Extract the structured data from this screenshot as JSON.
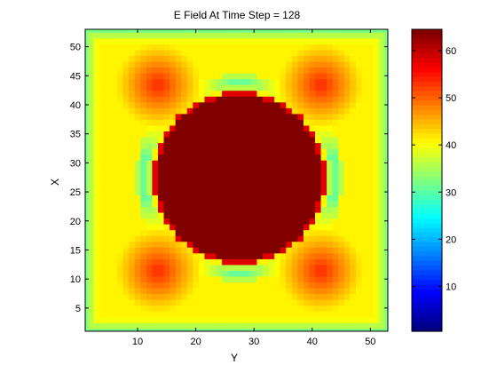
{
  "chart_data": {
    "type": "heatmap",
    "title": "E Field At Time Step = 128",
    "xlabel": "Y",
    "ylabel": "X",
    "xlim": [
      1,
      53
    ],
    "ylim": [
      1,
      53
    ],
    "x_ticks": [
      10,
      20,
      30,
      40,
      50
    ],
    "y_ticks": [
      5,
      10,
      15,
      20,
      25,
      30,
      35,
      40,
      45,
      50
    ],
    "colorbar": {
      "range": [
        1,
        64
      ],
      "ticks": [
        10,
        20,
        30,
        40,
        50,
        60
      ],
      "colormap": "jet"
    },
    "field_description": {
      "central_disk": {
        "center_y": 27.5,
        "center_x": 27.5,
        "radius": 14.2,
        "value": 64
      },
      "ring": {
        "radius": 16.5,
        "value": 31
      },
      "corner_lobes": [
        {
          "y": 13.5,
          "x": 43.5,
          "value": 54
        },
        {
          "y": 41.5,
          "x": 43.5,
          "value": 54
        },
        {
          "y": 13.5,
          "x": 11.5,
          "value": 54
        },
        {
          "y": 41.5,
          "x": 11.5,
          "value": 54
        }
      ],
      "boundary_value": 32
    }
  }
}
